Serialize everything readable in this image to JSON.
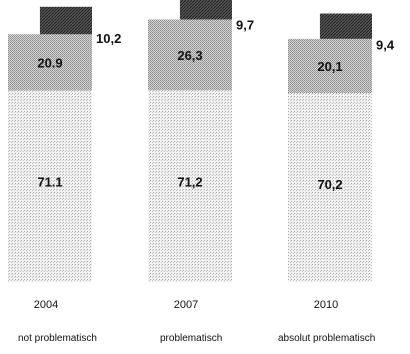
{
  "chart_data": {
    "type": "bar",
    "stacked": true,
    "categories": [
      "2004",
      "2007",
      "2010"
    ],
    "series": [
      {
        "name": "",
        "values": [
          71.1,
          71.2,
          70.2
        ],
        "pattern": "light-dots"
      },
      {
        "name": "",
        "values": [
          20.9,
          26.3,
          20.1
        ],
        "pattern": "medium-dots"
      },
      {
        "name": "",
        "values": [
          10.2,
          9.7,
          9.4
        ],
        "pattern": "dark-hatch"
      }
    ],
    "segment_labels": [
      [
        "71.1",
        "20.9",
        "10,2"
      ],
      [
        "71,2",
        "26,3",
        "9,7"
      ],
      [
        "70,2",
        "20,1",
        "9,4"
      ]
    ],
    "legend_labels": [
      "not problematisch",
      "problematisch",
      "absolut problematisch"
    ],
    "colors": {
      "light": "#e6e6e6",
      "medium": "#bdbdbd",
      "dark": "#4a4a4a"
    },
    "grid": false,
    "legend_position": "bottom"
  }
}
